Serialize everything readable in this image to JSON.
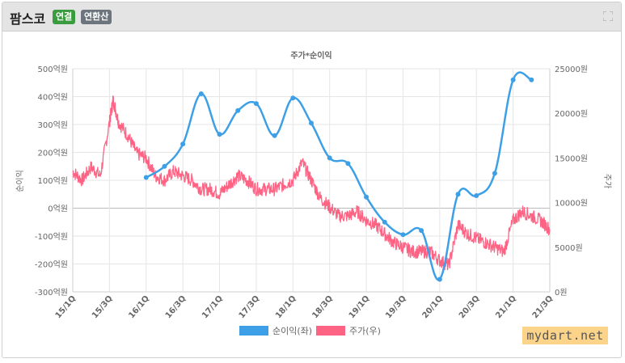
{
  "header": {
    "title": "팜스코",
    "badge_connected": "연결",
    "badge_annual": "연환산"
  },
  "watermark": "mydart.net",
  "colors": {
    "profit": "#3da0e6",
    "price": "#ff6384",
    "badge_green": "#3b9b3f",
    "badge_gray": "#6c757d"
  },
  "chart_data": {
    "type": "line",
    "title": "주가*순이익",
    "ylabel_left": "순이익",
    "ylabel_right": "주가",
    "ylim_left": [
      -300,
      500
    ],
    "ylim_right": [
      0,
      25000
    ],
    "yticks_left": [
      "500억원",
      "400억원",
      "300억원",
      "200억원",
      "100억원",
      "0억원",
      "-100억원",
      "-200억원",
      "-300억원"
    ],
    "yticks_right": [
      "25000원",
      "20000원",
      "15000원",
      "10000원",
      "5000원",
      "0원"
    ],
    "categories": [
      "15/1Q",
      "15/3Q",
      "16/1Q",
      "16/3Q",
      "17/1Q",
      "17/3Q",
      "18/1Q",
      "18/3Q",
      "19/1Q",
      "19/3Q",
      "20/1Q",
      "20/3Q",
      "21/1Q",
      "21/3Q"
    ],
    "legend": [
      "순이익(좌)",
      "주가(우)"
    ],
    "legend_position": "bottom",
    "grid": true,
    "series": [
      {
        "name": "순이익(좌)",
        "axis": "left",
        "x": [
          2.0,
          2.5,
          3.0,
          3.5,
          4.0,
          4.5,
          5.0,
          5.5,
          6.0,
          6.5,
          7.0,
          7.5,
          8.0,
          8.5,
          9.0,
          9.5,
          10.0,
          10.5,
          11.0,
          11.5,
          12.0,
          12.5
        ],
        "values": [
          110,
          150,
          230,
          410,
          265,
          350,
          375,
          260,
          395,
          305,
          180,
          160,
          40,
          -50,
          -95,
          -80,
          -255,
          50,
          45,
          125,
          460,
          460
        ]
      },
      {
        "name": "주가(우)",
        "axis": "right",
        "x": [
          0,
          0.25,
          0.5,
          0.75,
          1.0,
          1.1,
          1.25,
          1.5,
          1.75,
          2.0,
          2.25,
          2.5,
          2.75,
          3.0,
          3.25,
          3.5,
          3.75,
          4.0,
          4.25,
          4.5,
          4.75,
          5.0,
          5.25,
          5.5,
          5.75,
          6.0,
          6.25,
          6.5,
          6.75,
          7.0,
          7.25,
          7.5,
          7.75,
          8.0,
          8.25,
          8.5,
          8.75,
          9.0,
          9.25,
          9.5,
          9.75,
          10.0,
          10.25,
          10.5,
          10.75,
          11.0,
          11.25,
          11.5,
          11.75,
          12.0,
          12.25,
          12.5,
          12.75,
          13.0
        ],
        "values": [
          13500,
          12500,
          14000,
          13000,
          19000,
          21500,
          19000,
          17500,
          15500,
          15000,
          13000,
          12500,
          13500,
          13000,
          12500,
          11500,
          11500,
          11000,
          12000,
          13000,
          12500,
          11500,
          11500,
          11500,
          12000,
          12500,
          14500,
          12500,
          10500,
          9500,
          8500,
          8500,
          9000,
          8000,
          7500,
          6500,
          5500,
          5000,
          4500,
          4500,
          4500,
          3500,
          3000,
          7500,
          6500,
          6000,
          5500,
          5000,
          4500,
          8000,
          9000,
          8500,
          8000,
          7000
        ]
      }
    ]
  }
}
